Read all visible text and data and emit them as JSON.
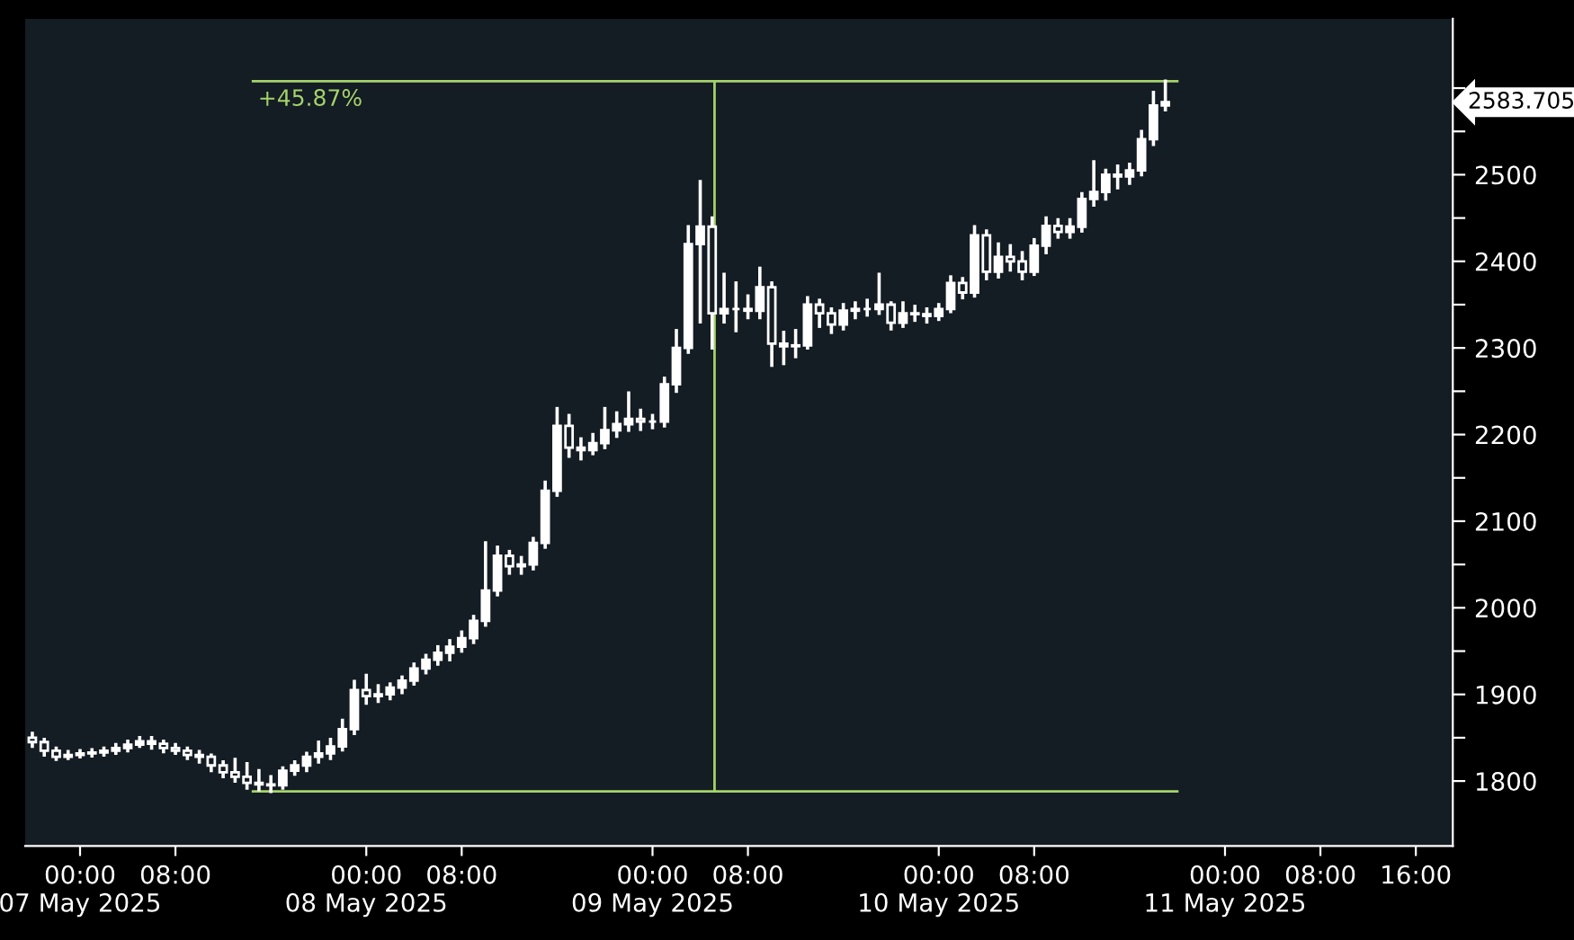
{
  "chart_data": {
    "type": "candlestick",
    "color": "#ffffff",
    "x": [
      "2025-05-06T20:00",
      "2025-05-06T21:00",
      "2025-05-06T22:00",
      "2025-05-06T23:00",
      "2025-05-07T00:00",
      "2025-05-07T01:00",
      "2025-05-07T02:00",
      "2025-05-07T03:00",
      "2025-05-07T04:00",
      "2025-05-07T05:00",
      "2025-05-07T06:00",
      "2025-05-07T07:00",
      "2025-05-07T08:00",
      "2025-05-07T09:00",
      "2025-05-07T10:00",
      "2025-05-07T11:00",
      "2025-05-07T12:00",
      "2025-05-07T13:00",
      "2025-05-07T14:00",
      "2025-05-07T15:00",
      "2025-05-07T16:00",
      "2025-05-07T17:00",
      "2025-05-07T18:00",
      "2025-05-07T19:00",
      "2025-05-07T20:00",
      "2025-05-07T21:00",
      "2025-05-07T22:00",
      "2025-05-07T23:00",
      "2025-05-08T00:00",
      "2025-05-08T01:00",
      "2025-05-08T02:00",
      "2025-05-08T03:00",
      "2025-05-08T04:00",
      "2025-05-08T05:00",
      "2025-05-08T06:00",
      "2025-05-08T07:00",
      "2025-05-08T08:00",
      "2025-05-08T09:00",
      "2025-05-08T10:00",
      "2025-05-08T11:00",
      "2025-05-08T12:00",
      "2025-05-08T13:00",
      "2025-05-08T14:00",
      "2025-05-08T15:00",
      "2025-05-08T16:00",
      "2025-05-08T17:00",
      "2025-05-08T18:00",
      "2025-05-08T19:00",
      "2025-05-08T20:00",
      "2025-05-08T21:00",
      "2025-05-08T22:00",
      "2025-05-08T23:00",
      "2025-05-09T00:00",
      "2025-05-09T01:00",
      "2025-05-09T02:00",
      "2025-05-09T03:00",
      "2025-05-09T04:00",
      "2025-05-09T05:00",
      "2025-05-09T06:00",
      "2025-05-09T07:00",
      "2025-05-09T08:00",
      "2025-05-09T09:00",
      "2025-05-09T10:00",
      "2025-05-09T11:00",
      "2025-05-09T12:00",
      "2025-05-09T13:00",
      "2025-05-09T14:00",
      "2025-05-09T15:00",
      "2025-05-09T16:00",
      "2025-05-09T17:00",
      "2025-05-09T18:00",
      "2025-05-09T19:00",
      "2025-05-09T20:00",
      "2025-05-09T21:00",
      "2025-05-09T22:00",
      "2025-05-09T23:00",
      "2025-05-10T00:00",
      "2025-05-10T01:00",
      "2025-05-10T02:00",
      "2025-05-10T03:00",
      "2025-05-10T04:00",
      "2025-05-10T05:00",
      "2025-05-10T06:00",
      "2025-05-10T07:00",
      "2025-05-10T08:00",
      "2025-05-10T09:00",
      "2025-05-10T10:00",
      "2025-05-10T11:00",
      "2025-05-10T12:00",
      "2025-05-10T13:00",
      "2025-05-10T14:00",
      "2025-05-10T15:00",
      "2025-05-10T16:00",
      "2025-05-10T17:00",
      "2025-05-10T18:00",
      "2025-05-10T19:00"
    ],
    "ohlc": [
      [
        1850,
        1855,
        1840,
        1845
      ],
      [
        1845,
        1848,
        1830,
        1835
      ],
      [
        1835,
        1838,
        1825,
        1828
      ],
      [
        1828,
        1834,
        1826,
        1830
      ],
      [
        1830,
        1835,
        1828,
        1832
      ],
      [
        1832,
        1836,
        1829,
        1833
      ],
      [
        1833,
        1838,
        1830,
        1835
      ],
      [
        1835,
        1842,
        1832,
        1838
      ],
      [
        1838,
        1846,
        1835,
        1842
      ],
      [
        1842,
        1850,
        1840,
        1846
      ],
      [
        1846,
        1850,
        1838,
        1843
      ],
      [
        1843,
        1846,
        1834,
        1838
      ],
      [
        1838,
        1842,
        1832,
        1835
      ],
      [
        1835,
        1838,
        1826,
        1830
      ],
      [
        1830,
        1834,
        1822,
        1828
      ],
      [
        1828,
        1830,
        1812,
        1818
      ],
      [
        1818,
        1822,
        1805,
        1810
      ],
      [
        1810,
        1825,
        1800,
        1805
      ],
      [
        1805,
        1820,
        1792,
        1798
      ],
      [
        1798,
        1812,
        1790,
        1796
      ],
      [
        1796,
        1805,
        1788,
        1795
      ],
      [
        1795,
        1815,
        1792,
        1812
      ],
      [
        1812,
        1822,
        1808,
        1818
      ],
      [
        1818,
        1832,
        1812,
        1828
      ],
      [
        1828,
        1845,
        1822,
        1832
      ],
      [
        1832,
        1848,
        1826,
        1840
      ],
      [
        1840,
        1870,
        1836,
        1860
      ],
      [
        1860,
        1915,
        1855,
        1905
      ],
      [
        1905,
        1922,
        1890,
        1898
      ],
      [
        1898,
        1910,
        1892,
        1900
      ],
      [
        1900,
        1912,
        1895,
        1908
      ],
      [
        1908,
        1920,
        1902,
        1916
      ],
      [
        1916,
        1935,
        1912,
        1930
      ],
      [
        1930,
        1945,
        1925,
        1940
      ],
      [
        1940,
        1955,
        1935,
        1948
      ],
      [
        1948,
        1962,
        1940,
        1955
      ],
      [
        1955,
        1972,
        1950,
        1965
      ],
      [
        1965,
        1990,
        1960,
        1985
      ],
      [
        1985,
        2075,
        1980,
        2020
      ],
      [
        2020,
        2070,
        2015,
        2060
      ],
      [
        2060,
        2065,
        2040,
        2048
      ],
      [
        2048,
        2058,
        2040,
        2050
      ],
      [
        2050,
        2080,
        2045,
        2075
      ],
      [
        2075,
        2145,
        2070,
        2135
      ],
      [
        2135,
        2230,
        2130,
        2210
      ],
      [
        2210,
        2222,
        2175,
        2185
      ],
      [
        2185,
        2195,
        2172,
        2182
      ],
      [
        2182,
        2200,
        2178,
        2190
      ],
      [
        2190,
        2230,
        2185,
        2205
      ],
      [
        2205,
        2225,
        2198,
        2212
      ],
      [
        2212,
        2248,
        2205,
        2218
      ],
      [
        2218,
        2228,
        2206,
        2215
      ],
      [
        2215,
        2222,
        2208,
        2215
      ],
      [
        2215,
        2265,
        2210,
        2258
      ],
      [
        2258,
        2320,
        2250,
        2300
      ],
      [
        2300,
        2440,
        2295,
        2420
      ],
      [
        2420,
        2492,
        2330,
        2440
      ],
      [
        2440,
        2450,
        2300,
        2340
      ],
      [
        2340,
        2385,
        2330,
        2345
      ],
      [
        2345,
        2375,
        2320,
        2345
      ],
      [
        2345,
        2360,
        2335,
        2343
      ],
      [
        2343,
        2392,
        2335,
        2370
      ],
      [
        2370,
        2375,
        2280,
        2305
      ],
      [
        2305,
        2318,
        2282,
        2302
      ],
      [
        2302,
        2320,
        2290,
        2303
      ],
      [
        2303,
        2358,
        2300,
        2350
      ],
      [
        2350,
        2355,
        2325,
        2340
      ],
      [
        2340,
        2345,
        2318,
        2327
      ],
      [
        2327,
        2350,
        2322,
        2343
      ],
      [
        2343,
        2352,
        2335,
        2345
      ],
      [
        2345,
        2355,
        2338,
        2345
      ],
      [
        2345,
        2385,
        2340,
        2350
      ],
      [
        2350,
        2352,
        2322,
        2329
      ],
      [
        2329,
        2352,
        2325,
        2340
      ],
      [
        2340,
        2348,
        2332,
        2339
      ],
      [
        2339,
        2345,
        2330,
        2337
      ],
      [
        2337,
        2350,
        2333,
        2345
      ],
      [
        2345,
        2382,
        2342,
        2375
      ],
      [
        2375,
        2380,
        2358,
        2364
      ],
      [
        2364,
        2440,
        2360,
        2430
      ],
      [
        2430,
        2435,
        2380,
        2388
      ],
      [
        2388,
        2420,
        2382,
        2405
      ],
      [
        2405,
        2418,
        2390,
        2400
      ],
      [
        2400,
        2410,
        2380,
        2388
      ],
      [
        2388,
        2425,
        2385,
        2418
      ],
      [
        2418,
        2450,
        2410,
        2441
      ],
      [
        2441,
        2448,
        2428,
        2434
      ],
      [
        2434,
        2448,
        2428,
        2440
      ],
      [
        2440,
        2478,
        2435,
        2472
      ],
      [
        2472,
        2515,
        2465,
        2480
      ],
      [
        2480,
        2505,
        2472,
        2500
      ],
      [
        2500,
        2510,
        2485,
        2498
      ],
      [
        2498,
        2512,
        2490,
        2505
      ],
      [
        2505,
        2550,
        2500,
        2541
      ],
      [
        2541,
        2595,
        2535,
        2580
      ],
      [
        2580,
        2608,
        2575,
        2583.705
      ]
    ],
    "series": [
      {
        "type": "line",
        "x": [
          "2025-05-07T14:30",
          "2025-05-10T20:00"
        ],
        "values": [
          2608,
          2608
        ],
        "color": "#a4d36a"
      },
      {
        "type": "line",
        "x": [
          "2025-05-07T14:30",
          "2025-05-10T20:00"
        ],
        "values": [
          1788,
          1788
        ],
        "color": "#a4d36a"
      },
      {
        "type": "line",
        "x": [
          "2025-05-09T05:12",
          "2025-05-09T05:12"
        ],
        "values": [
          1788,
          2608
        ],
        "color": "#a4d36a"
      }
    ],
    "annotations": [
      {
        "text": "+45.87%",
        "x": "2025-05-07T14:30",
        "y": 2608
      },
      "2583.705"
    ],
    "xlim": [
      "2025-05-06T19:24",
      "2025-05-11T19:06"
    ],
    "ylim": [
      1725,
      2680
    ],
    "xticks": [
      {
        "value": "2025-05-07T00:00",
        "label": "00:00\n07 May 2025"
      },
      {
        "value": "2025-05-07T08:00",
        "label": "08:00"
      },
      {
        "value": "2025-05-08T00:00",
        "label": "00:00\n08 May 2025"
      },
      {
        "value": "2025-05-08T08:00",
        "label": "08:00"
      },
      {
        "value": "2025-05-09T00:00",
        "label": "00:00\n09 May 2025"
      },
      {
        "value": "2025-05-09T08:00",
        "label": "08:00"
      },
      {
        "value": "2025-05-10T00:00",
        "label": "00:00\n10 May 2025"
      },
      {
        "value": "2025-05-10T08:00",
        "label": "08:00"
      },
      {
        "value": "2025-05-11T00:00",
        "label": "00:00\n11 May 2025"
      },
      {
        "value": "2025-05-11T08:00",
        "label": "08:00"
      },
      {
        "value": "2025-05-11T16:00",
        "label": "16:00"
      }
    ],
    "yticks": [
      1800,
      {
        "value": 1850,
        "label": null
      },
      1900,
      {
        "value": 1950,
        "label": null
      },
      2000,
      {
        "value": 2050,
        "label": null
      },
      2100,
      {
        "value": 2150,
        "label": null
      },
      2200,
      {
        "value": 2250,
        "label": null
      },
      2300,
      {
        "value": 2350,
        "label": null
      },
      2400,
      {
        "value": 2450,
        "label": null
      },
      2500,
      {
        "value": 2550,
        "label": null
      },
      {
        "value": 2600,
        "label": null
      }
    ],
    "grid": false,
    "legend": false
  }
}
